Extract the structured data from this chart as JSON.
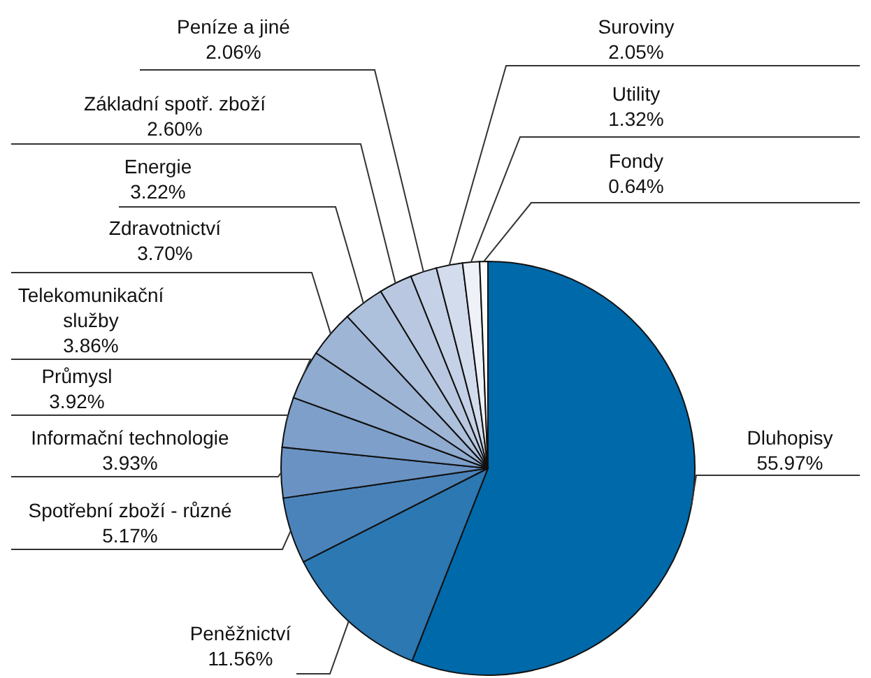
{
  "chart_data": {
    "type": "pie",
    "value_labels": [
      "55.97%",
      "11.56%",
      "5.17%",
      "3.93%",
      "3.92%",
      "3.86%",
      "3.70%",
      "3.22%",
      "2.60%",
      "2.06%",
      "2.05%",
      "1.32%",
      "0.64%"
    ],
    "categories": [
      "Dluhopisy",
      "Peněžnictví",
      "Spotřební zboží - různé",
      "Informační technologie",
      "Průmysl",
      "Telekomunikační služby",
      "Zdravotnictví",
      "Energie",
      "Základní spotř. zboží",
      "Peníze a jiné",
      "Suroviny",
      "Utility",
      "Fondy"
    ],
    "values": [
      55.97,
      11.56,
      5.17,
      3.93,
      3.92,
      3.86,
      3.7,
      3.22,
      2.6,
      2.06,
      2.05,
      1.32,
      0.64
    ],
    "colors": [
      "#0069aa",
      "#2b78b3",
      "#4a83ba",
      "#6a93c4",
      "#7d9fca",
      "#8fabd0",
      "#9fb5d6",
      "#adc0dc",
      "#b9c8e0",
      "#c5d1e6",
      "#d3dcec",
      "#eef1f7",
      "#ffffff"
    ]
  }
}
